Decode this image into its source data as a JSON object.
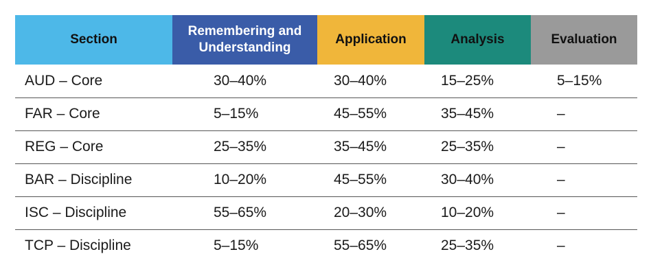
{
  "colors": {
    "section_header": "#4db8e8",
    "remembering_header": "#3a5ca8",
    "application_header": "#f0b63a",
    "analysis_header": "#1c8a7c",
    "evaluation_header": "#9a9a9a"
  },
  "header": {
    "section": "Section",
    "remembering_line1": "Remembering and",
    "remembering_line2": "Understanding",
    "application": "Application",
    "analysis": "Analysis",
    "evaluation": "Evaluation"
  },
  "rows": [
    {
      "section": "AUD – Core",
      "remembering": "30–40%",
      "application": "30–40%",
      "analysis": "15–25%",
      "evaluation": "5–15%"
    },
    {
      "section": "FAR – Core",
      "remembering": "5–15%",
      "application": "45–55%",
      "analysis": "35–45%",
      "evaluation": "–"
    },
    {
      "section": "REG – Core",
      "remembering": "25–35%",
      "application": "35–45%",
      "analysis": "25–35%",
      "evaluation": "–"
    },
    {
      "section": "BAR – Discipline",
      "remembering": "10–20%",
      "application": "45–55%",
      "analysis": "30–40%",
      "evaluation": "–"
    },
    {
      "section": "ISC – Discipline",
      "remembering": "55–65%",
      "application": "20–30%",
      "analysis": "10–20%",
      "evaluation": "–"
    },
    {
      "section": "TCP – Discipline",
      "remembering": "5–15%",
      "application": "55–65%",
      "analysis": "25–35%",
      "evaluation": "–"
    }
  ]
}
